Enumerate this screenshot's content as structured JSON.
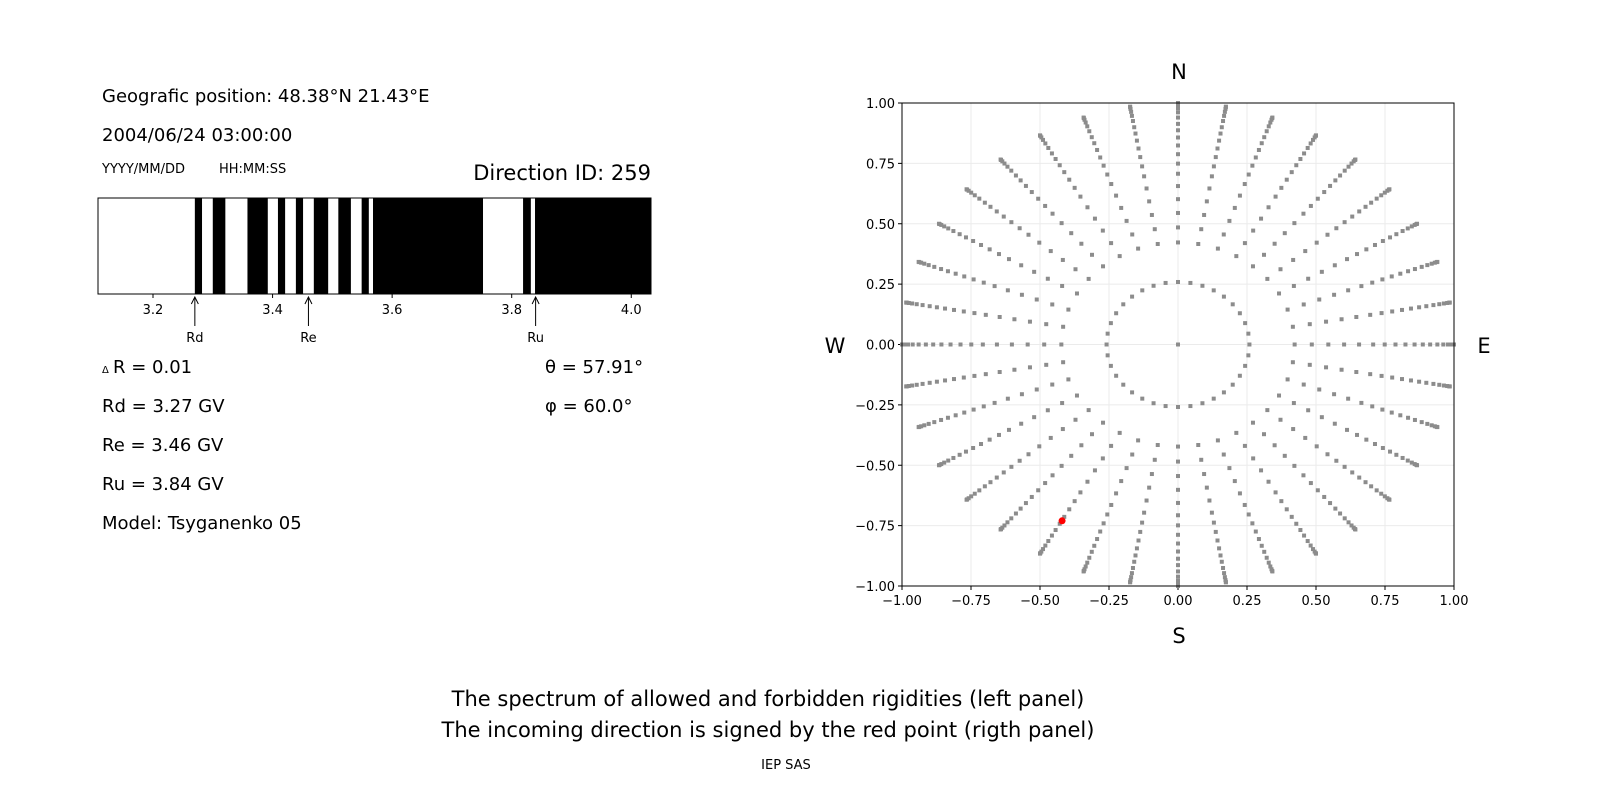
{
  "info": {
    "position": "Geografic position: 48.38°N 21.43°E",
    "datetime": "2004/06/24 03:00:00",
    "date_format": "YYYY/MM/DD",
    "time_format": "HH:MM:SS",
    "direction_id": "Direction ID: 259",
    "delta_r": "R = 0.01",
    "delta_symbol": "Δ",
    "rd": "Rd = 3.27 GV",
    "re": "Re = 3.46 GV",
    "ru": "Ru = 3.84 GV",
    "model": "Model: Tsyganenko 05",
    "theta": "θ = 57.91°",
    "phi": "φ = 60.0°"
  },
  "footer": {
    "line1": "The spectrum of allowed and forbidden rigidities (left panel)",
    "line2": "The incoming direction is signed by the red point (rigth panel)",
    "credit": "IEP SAS"
  },
  "chart_data": [
    {
      "type": "bar",
      "xlim": [
        3.108,
        4.033
      ],
      "xticks": [
        "3.2",
        "3.4",
        "3.6",
        "3.8",
        "4.0"
      ],
      "xtick_values": [
        3.2,
        3.4,
        3.6,
        3.8,
        4.0
      ],
      "black_bands": [
        [
          3.27,
          3.282
        ],
        [
          3.3,
          3.321
        ],
        [
          3.358,
          3.392
        ],
        [
          3.409,
          3.421
        ],
        [
          3.439,
          3.451
        ],
        [
          3.469,
          3.493
        ],
        [
          3.51,
          3.531
        ],
        [
          3.549,
          3.561
        ],
        [
          3.568,
          3.752
        ],
        [
          3.819,
          3.832
        ],
        [
          3.839,
          4.033
        ]
      ],
      "markers": [
        {
          "label": "Rd",
          "value": 3.27
        },
        {
          "label": "Re",
          "value": 3.46
        },
        {
          "label": "Ru",
          "value": 3.84
        }
      ]
    },
    {
      "type": "scatter",
      "xlim": [
        -1,
        1
      ],
      "ylim": [
        -1,
        1
      ],
      "grid": true,
      "xticks": [
        "−1.00",
        "−0.75",
        "−0.50",
        "−0.25",
        "0.00",
        "0.25",
        "0.50",
        "0.75",
        "1.00"
      ],
      "yticks": [
        "−1.00",
        "−0.75",
        "−0.50",
        "−0.25",
        "0.00",
        "0.25",
        "0.50",
        "0.75",
        "1.00"
      ],
      "tick_values": [
        -1,
        -0.75,
        -0.5,
        -0.25,
        0,
        0.25,
        0.5,
        0.75,
        1
      ],
      "compass": {
        "n": "N",
        "s": "S",
        "e": "E",
        "w": "W"
      },
      "grid_points": {
        "azimuth_step_deg": 10,
        "zenith_deg": [
          0,
          15,
          25,
          29,
          33,
          37,
          41,
          45,
          48.5,
          52,
          55.5,
          59,
          62.5,
          66,
          70,
          74,
          78,
          82,
          86,
          90
        ],
        "color": "#8c8c8c"
      },
      "highlight": {
        "x": -0.42,
        "y": -0.73,
        "color": "#ff0000"
      }
    }
  ]
}
